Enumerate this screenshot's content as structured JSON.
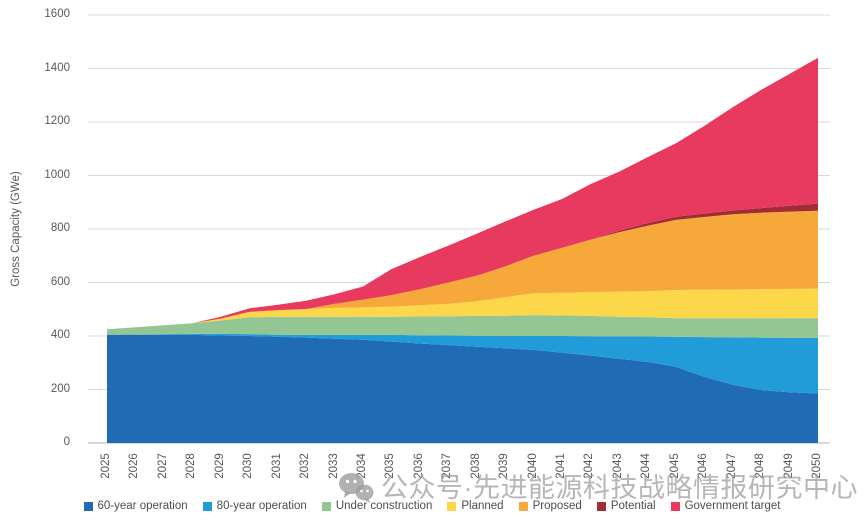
{
  "watermark": {
    "text": "公众号·先进能源科技战略情报研究中心",
    "icon": "wechat-icon"
  },
  "chart_data": {
    "type": "area",
    "stacked": true,
    "title": "",
    "xlabel": "",
    "ylabel": "Gross Capacity (GWe)",
    "ylim": [
      0,
      1600
    ],
    "yticks": [
      0,
      200,
      400,
      600,
      800,
      1000,
      1200,
      1400,
      1600
    ],
    "grid": "horizontal",
    "legend_position": "bottom",
    "years": [
      2025,
      2026,
      2027,
      2028,
      2029,
      2030,
      2031,
      2032,
      2033,
      2034,
      2035,
      2036,
      2037,
      2038,
      2039,
      2040,
      2041,
      2042,
      2043,
      2044,
      2045,
      2046,
      2047,
      2048,
      2049,
      2050
    ],
    "series": [
      {
        "name": "60-year operation",
        "color": "#1f6cb4",
        "values": [
          405,
          405,
          405,
          404,
          402,
          400,
          397,
          394,
          390,
          386,
          379,
          372,
          366,
          360,
          354,
          348,
          338,
          327,
          315,
          303,
          285,
          248,
          218,
          198,
          190,
          185
        ]
      },
      {
        "name": "80-year operation",
        "color": "#219cd8",
        "values": [
          0,
          1,
          2,
          4,
          6,
          7,
          8,
          10,
          14,
          18,
          25,
          31,
          36,
          41,
          47,
          52,
          62,
          72,
          83,
          95,
          112,
          148,
          177,
          196,
          203,
          208
        ]
      },
      {
        "name": "Under construction",
        "color": "#93c693",
        "values": [
          20,
          27,
          33,
          40,
          50,
          63,
          67,
          68,
          68,
          68,
          68,
          70,
          72,
          74,
          75,
          78,
          77,
          76,
          74,
          72,
          69,
          70,
          71,
          72,
          74,
          74
        ]
      },
      {
        "name": "Planned",
        "color": "#fdd74a",
        "values": [
          0,
          0,
          0,
          0,
          7,
          20,
          25,
          29,
          33,
          35,
          38,
          42,
          46,
          55,
          69,
          82,
          85,
          89,
          94,
          98,
          106,
          107,
          108,
          109,
          109,
          110
        ]
      },
      {
        "name": "Proposed",
        "color": "#f6a83b",
        "values": [
          0,
          0,
          0,
          0,
          0,
          0,
          0,
          0,
          15,
          29,
          43,
          60,
          80,
          95,
          115,
          140,
          168,
          196,
          222,
          244,
          262,
          272,
          281,
          286,
          289,
          291
        ]
      },
      {
        "name": "Potential",
        "color": "#a12c34",
        "values": [
          0,
          0,
          0,
          0,
          0,
          0,
          0,
          0,
          0,
          0,
          0,
          0,
          0,
          0,
          0,
          0,
          0,
          0,
          5,
          10,
          12,
          13,
          14,
          17,
          22,
          27
        ]
      },
      {
        "name": "Government target",
        "color": "#e73a5e",
        "values": [
          0,
          0,
          0,
          0,
          7,
          13,
          20,
          31,
          36,
          49,
          97,
          120,
          138,
          157,
          168,
          172,
          182,
          208,
          221,
          246,
          274,
          327,
          386,
          442,
          493,
          545
        ]
      }
    ]
  },
  "axis_colors": {
    "gridline": "#d9d9d9",
    "baseline": "#b3b3b3",
    "tick_text": "#595959"
  }
}
